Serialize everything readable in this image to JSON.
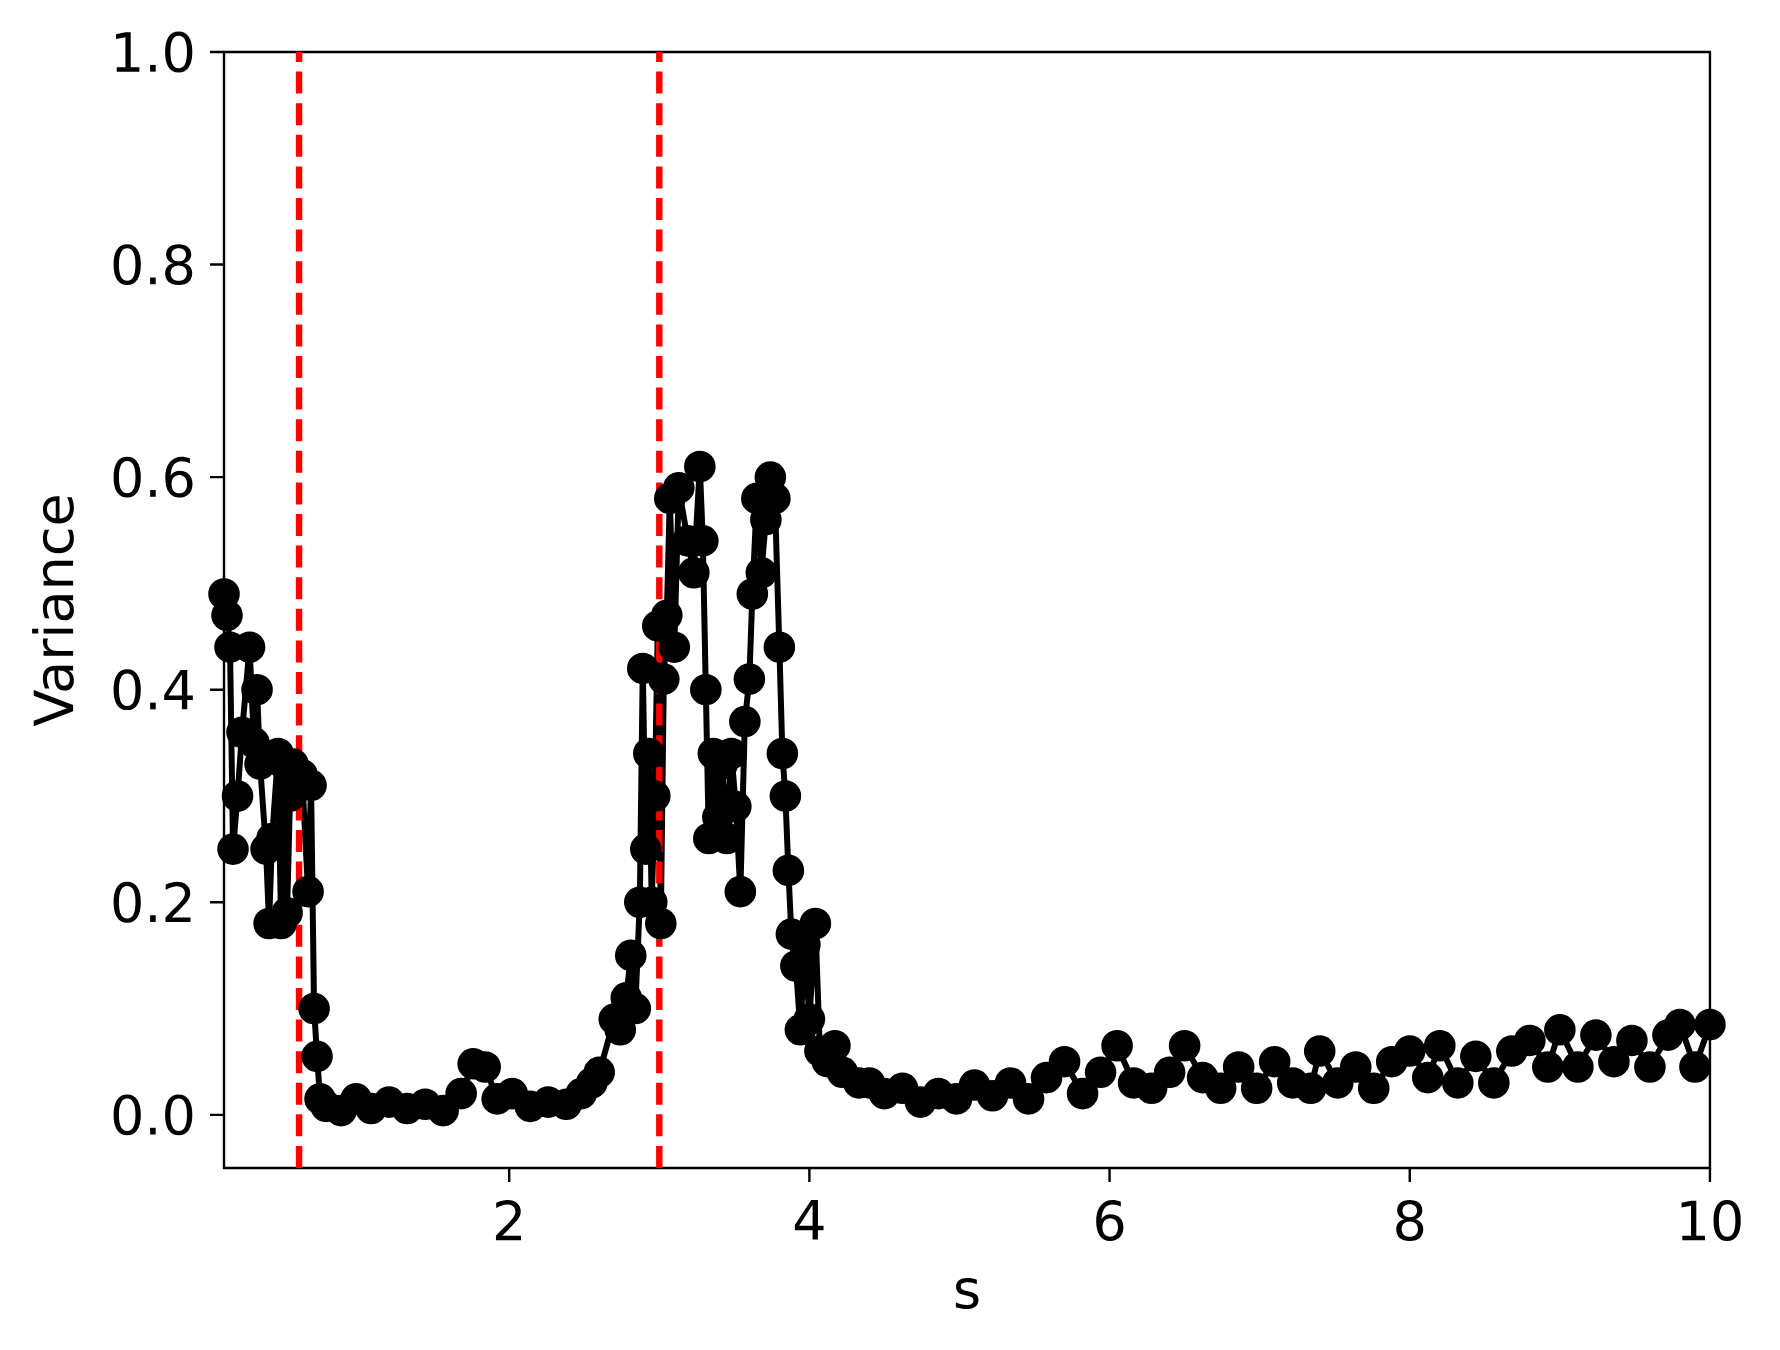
{
  "chart_data": {
    "type": "line",
    "xlabel": "s",
    "ylabel": "Variance",
    "x": [
      0.1,
      0.12,
      0.14,
      0.16,
      0.19,
      0.22,
      0.27,
      0.3,
      0.32,
      0.34,
      0.38,
      0.4,
      0.42,
      0.46,
      0.48,
      0.5,
      0.52,
      0.54,
      0.56,
      0.6,
      0.62,
      0.66,
      0.68,
      0.7,
      0.72,
      0.74,
      0.78,
      0.88,
      0.98,
      1.08,
      1.2,
      1.32,
      1.44,
      1.56,
      1.68,
      1.76,
      1.84,
      1.92,
      2.02,
      2.14,
      2.26,
      2.38,
      2.48,
      2.55,
      2.6,
      2.7,
      2.74,
      2.78,
      2.81,
      2.84,
      2.87,
      2.89,
      2.91,
      2.93,
      2.95,
      2.97,
      2.99,
      3.01,
      3.03,
      3.05,
      3.07,
      3.1,
      3.13,
      3.19,
      3.23,
      3.27,
      3.29,
      3.31,
      3.33,
      3.36,
      3.39,
      3.42,
      3.45,
      3.48,
      3.51,
      3.54,
      3.57,
      3.6,
      3.62,
      3.65,
      3.68,
      3.71,
      3.74,
      3.77,
      3.8,
      3.82,
      3.84,
      3.86,
      3.88,
      3.91,
      3.94,
      3.97,
      4.0,
      4.04,
      4.07,
      4.12,
      4.17,
      4.22,
      4.33,
      4.4,
      4.5,
      4.62,
      4.74,
      4.86,
      4.98,
      5.1,
      5.22,
      5.34,
      5.46,
      5.58,
      5.7,
      5.82,
      5.94,
      6.05,
      6.16,
      6.28,
      6.4,
      6.5,
      6.62,
      6.74,
      6.86,
      6.98,
      7.1,
      7.22,
      7.34,
      7.4,
      7.52,
      7.64,
      7.76,
      7.88,
      8.0,
      8.12,
      8.2,
      8.32,
      8.44,
      8.56,
      8.68,
      8.8,
      8.92,
      9.0,
      9.12,
      9.24,
      9.36,
      9.48,
      9.6,
      9.72,
      9.8,
      9.9,
      10.0
    ],
    "series": [
      {
        "color": "#000000",
        "values": [
          0.49,
          0.47,
          0.44,
          0.25,
          0.3,
          0.36,
          0.44,
          0.35,
          0.4,
          0.33,
          0.25,
          0.18,
          0.26,
          0.34,
          0.18,
          0.33,
          0.19,
          0.3,
          0.33,
          0.31,
          0.32,
          0.21,
          0.31,
          0.1,
          0.055,
          0.015,
          0.008,
          0.004,
          0.015,
          0.006,
          0.012,
          0.006,
          0.01,
          0.004,
          0.02,
          0.048,
          0.045,
          0.015,
          0.02,
          0.008,
          0.012,
          0.01,
          0.02,
          0.03,
          0.04,
          0.09,
          0.08,
          0.11,
          0.15,
          0.1,
          0.2,
          0.42,
          0.25,
          0.34,
          0.2,
          0.3,
          0.46,
          0.18,
          0.41,
          0.47,
          0.58,
          0.44,
          0.59,
          0.54,
          0.51,
          0.61,
          0.54,
          0.4,
          0.26,
          0.34,
          0.28,
          0.33,
          0.26,
          0.34,
          0.29,
          0.21,
          0.37,
          0.41,
          0.49,
          0.58,
          0.51,
          0.56,
          0.6,
          0.58,
          0.44,
          0.34,
          0.3,
          0.23,
          0.17,
          0.14,
          0.08,
          0.16,
          0.09,
          0.18,
          0.06,
          0.05,
          0.065,
          0.04,
          0.03,
          0.03,
          0.02,
          0.025,
          0.012,
          0.02,
          0.015,
          0.028,
          0.018,
          0.03,
          0.015,
          0.035,
          0.05,
          0.02,
          0.04,
          0.065,
          0.03,
          0.025,
          0.04,
          0.065,
          0.035,
          0.025,
          0.045,
          0.025,
          0.05,
          0.03,
          0.025,
          0.06,
          0.03,
          0.045,
          0.025,
          0.05,
          0.06,
          0.035,
          0.065,
          0.03,
          0.055,
          0.03,
          0.06,
          0.07,
          0.045,
          0.08,
          0.045,
          0.075,
          0.05,
          0.07,
          0.045,
          0.075,
          0.085,
          0.045,
          0.085
        ]
      }
    ],
    "marker": "circle",
    "line_style": "solid",
    "xlim": [
      0.1,
      10
    ],
    "ylim": [
      -0.05,
      1.0
    ],
    "xticks": [
      2,
      4,
      6,
      8,
      10
    ],
    "yticks": [
      {
        "value": 0,
        "label": "0.0"
      },
      0.2,
      0.4,
      0.6,
      0.8,
      {
        "value": 1,
        "label": "1.0"
      }
    ],
    "ref_lines": [
      {
        "axis": "x",
        "value": 0.6,
        "color": "#ff0000",
        "line_style": "dashed"
      },
      {
        "axis": "x",
        "value": 3.0,
        "color": "#ff0000",
        "line_style": "dashed"
      }
    ]
  }
}
